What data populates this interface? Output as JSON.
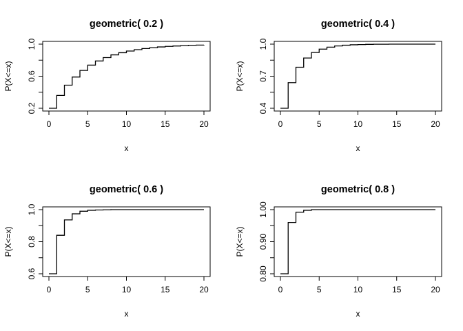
{
  "chart_data": [
    {
      "type": "line",
      "title": "geometric( 0.2 )",
      "xlabel": "x",
      "ylabel": "P(X<=x)",
      "xlim": [
        0,
        20
      ],
      "ylim": [
        0.2,
        1.0
      ],
      "xticks": [
        0,
        5,
        10,
        15,
        20
      ],
      "yticks": [
        "0.2",
        "0.6",
        "1.0"
      ],
      "grid": false,
      "series": [
        {
          "x": [
            0,
            1,
            2,
            3,
            4,
            5,
            6,
            7,
            8,
            9,
            10,
            11,
            12,
            13,
            14,
            15,
            16,
            17,
            18,
            19,
            20
          ],
          "values": [
            0.2,
            0.36,
            0.488,
            0.59,
            0.672,
            0.738,
            0.79,
            0.832,
            0.866,
            0.893,
            0.914,
            0.931,
            0.945,
            0.956,
            0.965,
            0.972,
            0.977,
            0.982,
            0.986,
            0.988,
            0.991
          ]
        }
      ]
    },
    {
      "type": "line",
      "title": "geometric( 0.4 )",
      "xlabel": "x",
      "ylabel": "P(X<=x)",
      "xlim": [
        0,
        20
      ],
      "ylim": [
        0.4,
        1.0
      ],
      "xticks": [
        0,
        5,
        10,
        15,
        20
      ],
      "yticks": [
        "0.4",
        "0.7",
        "1.0"
      ],
      "grid": false,
      "series": [
        {
          "x": [
            0,
            1,
            2,
            3,
            4,
            5,
            6,
            7,
            8,
            9,
            10,
            11,
            12,
            13,
            14,
            15,
            16,
            17,
            18,
            19,
            20
          ],
          "values": [
            0.4,
            0.64,
            0.784,
            0.87,
            0.922,
            0.953,
            0.972,
            0.983,
            0.99,
            0.994,
            0.996,
            0.998,
            0.999,
            0.999,
            1.0,
            1.0,
            1.0,
            1.0,
            1.0,
            1.0,
            1.0
          ]
        }
      ]
    },
    {
      "type": "line",
      "title": "geometric( 0.6 )",
      "xlabel": "x",
      "ylabel": "P(X<=x)",
      "xlim": [
        0,
        20
      ],
      "ylim": [
        0.6,
        1.0
      ],
      "xticks": [
        0,
        5,
        10,
        15,
        20
      ],
      "yticks": [
        "0.6",
        "0.8",
        "1.0"
      ],
      "grid": false,
      "series": [
        {
          "x": [
            0,
            1,
            2,
            3,
            4,
            5,
            6,
            7,
            8,
            9,
            10,
            11,
            12,
            13,
            14,
            15,
            16,
            17,
            18,
            19,
            20
          ],
          "values": [
            0.6,
            0.84,
            0.936,
            0.974,
            0.99,
            0.996,
            0.998,
            0.999,
            1.0,
            1.0,
            1.0,
            1.0,
            1.0,
            1.0,
            1.0,
            1.0,
            1.0,
            1.0,
            1.0,
            1.0,
            1.0
          ]
        }
      ]
    },
    {
      "type": "line",
      "title": "geometric( 0.8 )",
      "xlabel": "x",
      "ylabel": "P(X<=x)",
      "xlim": [
        0,
        20
      ],
      "ylim": [
        0.8,
        1.0
      ],
      "xticks": [
        0,
        5,
        10,
        15,
        20
      ],
      "yticks": [
        "0.80",
        "0.90",
        "1.00"
      ],
      "grid": false,
      "series": [
        {
          "x": [
            0,
            1,
            2,
            3,
            4,
            5,
            6,
            7,
            8,
            9,
            10,
            11,
            12,
            13,
            14,
            15,
            16,
            17,
            18,
            19,
            20
          ],
          "values": [
            0.8,
            0.96,
            0.992,
            0.998,
            1.0,
            1.0,
            1.0,
            1.0,
            1.0,
            1.0,
            1.0,
            1.0,
            1.0,
            1.0,
            1.0,
            1.0,
            1.0,
            1.0,
            1.0,
            1.0,
            1.0
          ]
        }
      ]
    }
  ]
}
